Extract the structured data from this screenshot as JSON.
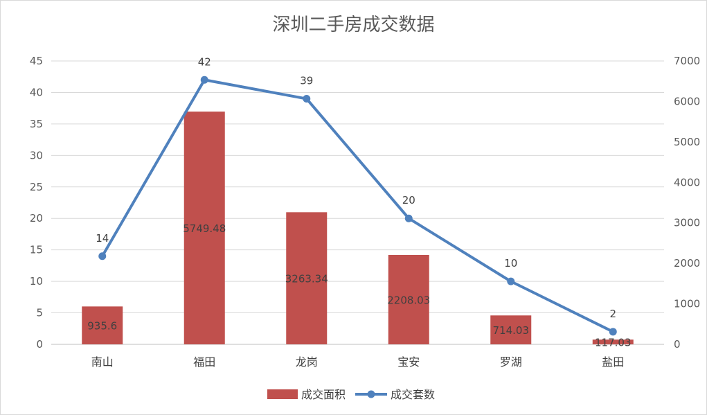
{
  "chart_data": {
    "type": "bar",
    "title": "深圳二手房成交数据",
    "categories": [
      "南山",
      "福田",
      "龙岗",
      "宝安",
      "罗湖",
      "盐田"
    ],
    "series": [
      {
        "name": "成交面积",
        "kind": "bar",
        "axis": "right",
        "color": "#c0504d",
        "values": [
          935.6,
          5749.48,
          3263.34,
          2208.03,
          714.03,
          117.03
        ],
        "labels": [
          "935.6",
          "5749.48",
          "3263.34",
          "2208.03",
          "714.03",
          "117.03"
        ]
      },
      {
        "name": "成交套数",
        "kind": "line",
        "axis": "left",
        "color": "#4f81bd",
        "values": [
          14,
          42,
          39,
          20,
          10,
          2
        ],
        "labels": [
          "14",
          "42",
          "39",
          "20",
          "10",
          "2"
        ]
      }
    ],
    "left_axis": {
      "ylim": [
        0,
        45
      ],
      "ticks": [
        "0",
        "5",
        "10",
        "15",
        "20",
        "25",
        "30",
        "35",
        "40",
        "45"
      ]
    },
    "right_axis": {
      "ylim": [
        0,
        7000
      ],
      "ticks": [
        "0",
        "1000",
        "2000",
        "3000",
        "4000",
        "5000",
        "6000",
        "7000"
      ]
    },
    "grid": true,
    "legend_position": "bottom"
  }
}
